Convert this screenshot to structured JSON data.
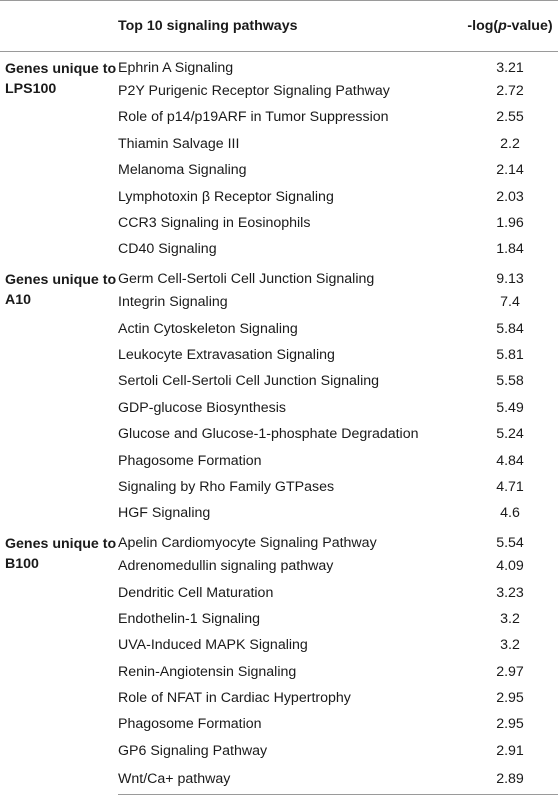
{
  "header": {
    "col1": "",
    "col2": "Top 10 signaling pathways",
    "col3_prefix": "-log(",
    "col3_italic": "p",
    "col3_suffix": "-value)"
  },
  "groups": [
    {
      "label": "Genes unique to LPS100",
      "rows": [
        {
          "pathway": "Ephrin A Signaling",
          "value": "3.21"
        },
        {
          "pathway": "P2Y Purigenic Receptor Signaling Pathway",
          "value": "2.72"
        },
        {
          "pathway": "Role of p14/p19ARF in Tumor Suppression",
          "value": "2.55"
        },
        {
          "pathway": "Thiamin Salvage III",
          "value": "2.2"
        },
        {
          "pathway": "Melanoma Signaling",
          "value": "2.14"
        },
        {
          "pathway": "Lymphotoxin β Receptor Signaling",
          "value": "2.03"
        },
        {
          "pathway": "CCR3 Signaling in Eosinophils",
          "value": "1.96"
        },
        {
          "pathway": "CD40 Signaling",
          "value": "1.84"
        }
      ]
    },
    {
      "label": "Genes unique to A10",
      "rows": [
        {
          "pathway": "Germ Cell-Sertoli Cell Junction Signaling",
          "value": "9.13"
        },
        {
          "pathway": "Integrin Signaling",
          "value": "7.4"
        },
        {
          "pathway": "Actin Cytoskeleton Signaling",
          "value": "5.84"
        },
        {
          "pathway": "Leukocyte Extravasation Signaling",
          "value": "5.81"
        },
        {
          "pathway": "Sertoli Cell-Sertoli Cell Junction Signaling",
          "value": "5.58"
        },
        {
          "pathway": "GDP-glucose Biosynthesis",
          "value": "5.49"
        },
        {
          "pathway": "Glucose and Glucose-1-phosphate Degradation",
          "value": "5.24"
        },
        {
          "pathway": "Phagosome Formation",
          "value": "4.84"
        },
        {
          "pathway": "Signaling by Rho Family GTPases",
          "value": "4.71"
        },
        {
          "pathway": "HGF Signaling",
          "value": "4.6"
        }
      ]
    },
    {
      "label": "Genes unique to B100",
      "rows": [
        {
          "pathway": "Apelin Cardiomyocyte Signaling Pathway",
          "value": "5.54"
        },
        {
          "pathway": "Adrenomedullin signaling pathway",
          "value": "4.09"
        },
        {
          "pathway": "Dendritic Cell Maturation",
          "value": "3.23"
        },
        {
          "pathway": "Endothelin-1 Signaling",
          "value": "3.2"
        },
        {
          "pathway": "UVA-Induced MAPK Signaling",
          "value": "3.2"
        },
        {
          "pathway": "Renin-Angiotensin Signaling",
          "value": "2.97"
        },
        {
          "pathway": "Role of NFAT in Cardiac Hypertrophy",
          "value": "2.95"
        },
        {
          "pathway": "Phagosome Formation",
          "value": "2.95"
        },
        {
          "pathway": "GP6 Signaling Pathway",
          "value": "2.91"
        },
        {
          "pathway": "Wnt/Ca+ pathway",
          "value": "2.89"
        }
      ]
    }
  ]
}
